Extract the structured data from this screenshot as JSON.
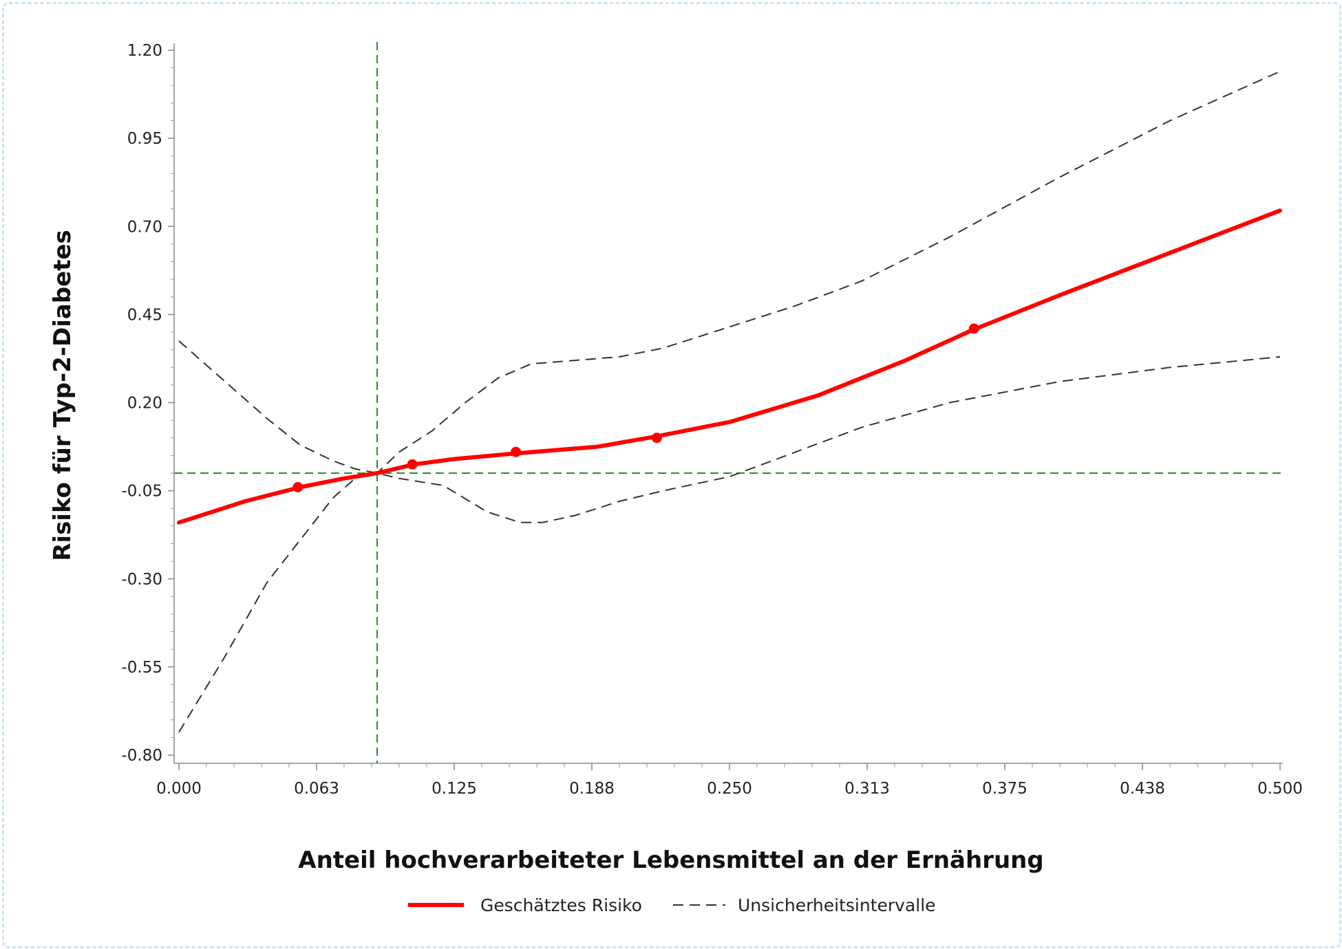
{
  "chart_data": {
    "type": "line",
    "xlabel": "Anteil hochverarbeiteter Lebensmittel an der Ernährung",
    "ylabel": "Risiko für Typ-2-Diabetes",
    "xlim": [
      0,
      0.5
    ],
    "ylim": [
      -0.8,
      1.2
    ],
    "x_ticks": [
      "0.000",
      "0.063",
      "0.125",
      "0.188",
      "0.250",
      "0.313",
      "0.375",
      "0.438",
      "0.500"
    ],
    "y_ticks": [
      "1.20",
      "0.95",
      "0.70",
      "0.45",
      "0.20",
      "-0.05",
      "-0.30",
      "-0.55",
      "-0.80"
    ],
    "grid": false,
    "legend_position": "bottom",
    "reference_lines": {
      "x": 0.09,
      "y": 0
    },
    "series": [
      {
        "name": "Geschätztes Risiko",
        "color": "#ff0000",
        "style": "solid",
        "x": [
          0,
          0.03,
          0.055,
          0.075,
          0.09,
          0.107,
          0.125,
          0.155,
          0.19,
          0.215,
          0.25,
          0.29,
          0.33,
          0.36,
          0.4,
          0.45,
          0.5
        ],
        "y": [
          -0.14,
          -0.08,
          -0.04,
          -0.015,
          0,
          0.025,
          0.04,
          0.057,
          0.075,
          0.102,
          0.145,
          0.22,
          0.32,
          0.405,
          0.505,
          0.625,
          0.745
        ],
        "markers_x": [
          0.054,
          0.106,
          0.153,
          0.217,
          0.361
        ],
        "markers_y": [
          -0.04,
          0.025,
          0.06,
          0.1,
          0.41
        ]
      },
      {
        "name": "Unsicherheitsintervalle",
        "color": "#333333",
        "style": "dashed",
        "x": [
          0,
          0.02,
          0.04,
          0.055,
          0.07,
          0.08,
          0.09,
          0.1,
          0.12,
          0.14,
          0.155,
          0.165,
          0.18,
          0.2,
          0.22,
          0.25,
          0.28,
          0.31,
          0.35,
          0.4,
          0.45,
          0.5
        ],
        "y": [
          0.375,
          0.265,
          0.155,
          0.08,
          0.035,
          0.012,
          0,
          -0.015,
          -0.035,
          -0.11,
          -0.14,
          -0.14,
          -0.12,
          -0.08,
          -0.05,
          -0.01,
          0.06,
          0.13,
          0.2,
          0.26,
          0.3,
          0.33
        ]
      },
      {
        "name": "Unsicherheitsintervalle",
        "color": "#333333",
        "style": "dashed",
        "x": [
          0,
          0.02,
          0.04,
          0.055,
          0.07,
          0.08,
          0.09,
          0.1,
          0.115,
          0.13,
          0.145,
          0.16,
          0.18,
          0.2,
          0.22,
          0.25,
          0.28,
          0.31,
          0.35,
          0.4,
          0.45,
          0.5
        ],
        "y": [
          -0.735,
          -0.53,
          -0.31,
          -0.19,
          -0.07,
          -0.015,
          0,
          0.06,
          0.12,
          0.2,
          0.27,
          0.31,
          0.32,
          0.33,
          0.355,
          0.415,
          0.475,
          0.545,
          0.67,
          0.84,
          1.0,
          1.14
        ]
      }
    ]
  },
  "legend": {
    "estimate_label": "Geschätztes Risiko",
    "interval_label": "Unsicherheitsintervalle"
  }
}
